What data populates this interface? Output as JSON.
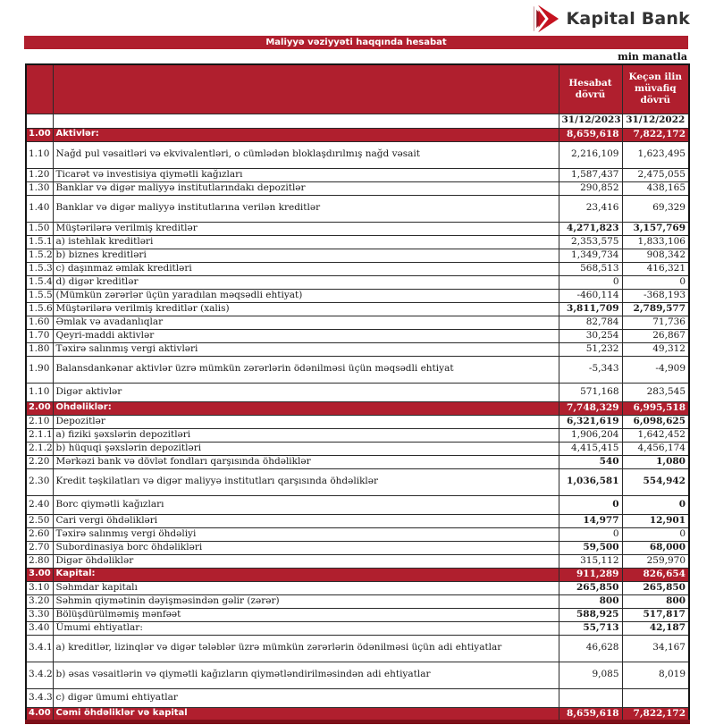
{
  "logo": {
    "bank_name": "Kapital Bank"
  },
  "banner": {
    "title": "Maliyyə vəziyyəti haqqında hesabat"
  },
  "unit_note": "min manatla",
  "colors": {
    "brand_red": "#B01F2E",
    "logo_red": "#C5121F",
    "logo_dark_red": "#8E1320",
    "footer_line": "#7D1019",
    "text": "#1A1A1A"
  },
  "table": {
    "col_headers": {
      "current": "Hesabat dövrü",
      "previous": "Keçən ilin müvafiq dövrü"
    },
    "date_row": {
      "current": "31/12/2023",
      "previous": "31/12/2022"
    },
    "rows": [
      {
        "no": "1.00",
        "label": "Aktivlər:",
        "v1": "8,659,618",
        "v2": "7,822,172",
        "type": "section"
      },
      {
        "no": "1.10",
        "label": "Nağd pul vəsaitləri və  ekvivalentləri, o cümlədən bloklaşdırılmış nağd vəsait",
        "v1": "2,216,109",
        "v2": "1,623,495",
        "type": "tall"
      },
      {
        "no": "1.20",
        "label": "Ticarət və investisiya qiymətli kağızları",
        "v1": "1,587,437",
        "v2": "2,475,055",
        "type": "normal"
      },
      {
        "no": "1.30",
        "label": "Banklar və digər maliyyə institutlarındakı depozitlər",
        "v1": "290,852",
        "v2": "438,165",
        "type": "normal"
      },
      {
        "no": "1.40",
        "label": "Banklar və digər maliyyə institutlarına verilən kreditlər",
        "v1": "23,416",
        "v2": "69,329",
        "type": "tall"
      },
      {
        "no": "1.50",
        "label": "Müştərilərə verilmiş kreditlər",
        "v1": "4,271,823",
        "v2": "3,157,769",
        "type": "normal bold"
      },
      {
        "no": "1.5.1",
        "label": "a) istehlak kreditləri",
        "v1": "2,353,575",
        "v2": "1,833,106",
        "type": "normal"
      },
      {
        "no": "1.5.2",
        "label": "b) biznes kreditləri",
        "v1": "1,349,734",
        "v2": "908,342",
        "type": "normal"
      },
      {
        "no": "1.5.3",
        "label": "c) daşınmaz əmlak kreditləri",
        "v1": "568,513",
        "v2": "416,321",
        "type": "normal"
      },
      {
        "no": "1.5.4",
        "label": "d) digər kreditlər",
        "v1": "0",
        "v2": "0",
        "type": "normal"
      },
      {
        "no": "1.5.5",
        "label": "(Mümkün zərərlər üçün yaradılan məqsədli ehtiyat)",
        "v1": "-460,114",
        "v2": "-368,193",
        "type": "normal"
      },
      {
        "no": "1.5.6",
        "label": "Müştərilərə verilmiş kreditlər (xalis)",
        "v1": "3,811,709",
        "v2": "2,789,577",
        "type": "normal bold"
      },
      {
        "no": "1.60",
        "label": "Əmlak və avadanlıqlar",
        "v1": "82,784",
        "v2": "71,736",
        "type": "normal"
      },
      {
        "no": "1.70",
        "label": "Qeyri-maddi aktivlər",
        "v1": "30,254",
        "v2": "26,867",
        "type": "normal"
      },
      {
        "no": "1.80",
        "label": "Təxirə salınmış vergi aktivləri",
        "v1": "51,232",
        "v2": "49,312",
        "type": "normal"
      },
      {
        "no": "1.90",
        "label": "Balansdankənar aktivlər üzrə mümkün zərərlərin ödənilməsi üçün məqsədli ehtiyat",
        "v1": "-5,343",
        "v2": "-4,909",
        "type": "tall"
      },
      {
        "no": "1.10",
        "label": "Digər aktivlər",
        "v1": "571,168",
        "v2": "283,545",
        "type": "mid"
      },
      {
        "no": "2.00",
        "label": "Öhdəliklər:",
        "v1": "7,748,329",
        "v2": "6,995,518",
        "type": "section"
      },
      {
        "no": "2.10",
        "label": "Depozitlər",
        "v1": "6,321,619",
        "v2": "6,098,625",
        "type": "normal bold"
      },
      {
        "no": "2.1.1",
        "label": "a) fiziki şəxslərin depozitləri",
        "v1": "1,906,204",
        "v2": "1,642,452",
        "type": "normal"
      },
      {
        "no": "2.1.2",
        "label": "b) hüquqi şəxslərin depozitləri",
        "v1": "4,415,415",
        "v2": "4,456,174",
        "type": "normal"
      },
      {
        "no": "2.20",
        "label": "Mərkəzi bank və dövlət fondları qarşısında öhdəliklər",
        "v1": "540",
        "v2": "1,080",
        "type": "normal bold"
      },
      {
        "no": "2.30",
        "label": "Kredit təşkilatları və digər maliyyə institutları qarşısında öhdəliklər",
        "v1": "1,036,581",
        "v2": "554,942",
        "type": "tall bold"
      },
      {
        "no": "2.40",
        "label": "Borc qiymətli kağızları",
        "v1": "0",
        "v2": "0",
        "type": "mid bold"
      },
      {
        "no": "2.50",
        "label": "Cari vergi öhdəlikləri",
        "v1": "14,977",
        "v2": "12,901",
        "type": "normal bold"
      },
      {
        "no": "2.60",
        "label": "Təxirə salınmış vergi öhdəliyi",
        "v1": "0",
        "v2": "0",
        "type": "normal"
      },
      {
        "no": "2.70",
        "label": "Subordinasiya borc öhdəlikləri",
        "v1": "59,500",
        "v2": "68,000",
        "type": "normal bold"
      },
      {
        "no": "2.80",
        "label": "Digər öhdəliklər",
        "v1": "315,112",
        "v2": "259,970",
        "type": "normal"
      },
      {
        "no": "3.00",
        "label": "Kapital:",
        "v1": "911,289",
        "v2": "826,654",
        "type": "section"
      },
      {
        "no": "3.10",
        "label": "Səhmdar kapitalı",
        "v1": "265,850",
        "v2": "265,850",
        "type": "normal bold"
      },
      {
        "no": "3.20",
        "label": "Səhmin qiymətinin dəyişməsindən gəlir (zərər)",
        "v1": "800",
        "v2": "800",
        "type": "normal bold"
      },
      {
        "no": "3.30",
        "label": "Bölüşdürülməmiş mənfəət",
        "v1": "588,925",
        "v2": "517,817",
        "type": "normal bold"
      },
      {
        "no": "3.40",
        "label": "Ümumi ehtiyatlar:",
        "v1": "55,713",
        "v2": "42,187",
        "type": "normal bold"
      },
      {
        "no": "3.4.1",
        "label": "a) kreditlər, lizinqlər və digər tələblər üzrə mümkün zərərlərin ödənilməsi üçün adi ehtiyatlar",
        "v1": "46,628",
        "v2": "34,167",
        "type": "tall"
      },
      {
        "no": "3.4.2",
        "label": "b) əsas vəsaitlərin və qiymətli kağızların qiymətləndirilməsindən adi ehtiyatlar",
        "v1": "9,085",
        "v2": "8,019",
        "type": "tall"
      },
      {
        "no": "3.4.3",
        "label": "c) digər ümumi ehtiyatlar",
        "v1": "",
        "v2": "",
        "type": "mid"
      },
      {
        "no": "4.00",
        "label": "Cəmi öhdəliklər və kapital",
        "v1": "8,659,618",
        "v2": "7,822,172",
        "type": "section"
      }
    ]
  }
}
